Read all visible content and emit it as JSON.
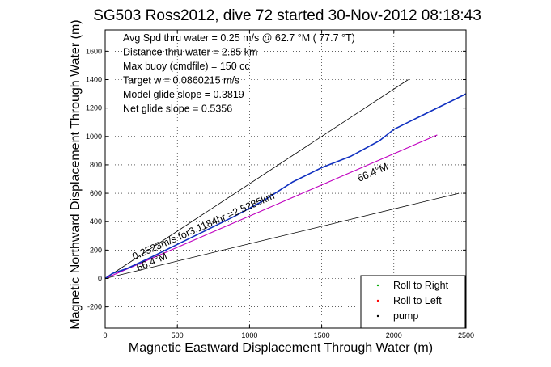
{
  "chart_data": {
    "type": "line",
    "title": "SG503 Ross2012, dive 72 started 30-Nov-2012 08:18:43",
    "xlabel": "Magnetic Eastward Displacement Through Water (m)",
    "ylabel": "Magnetic Northward Displacement Through Water (m)",
    "xlim": [
      0,
      2500
    ],
    "ylim": [
      -350,
      1750
    ],
    "xticks": [
      0,
      500,
      1000,
      1500,
      2000,
      2500
    ],
    "yticks": [
      -200,
      0,
      200,
      400,
      600,
      800,
      1000,
      1200,
      1400,
      1600
    ],
    "grid": true,
    "info_lines": [
      "Avg Spd thru water =  0.25 m/s @  62.7   °M ( 77.7 °T)",
      "Distance thru water =  2.85 km",
      "Max buoy (cmdfile) = 150 cc",
      "Target w = 0.0860215 m/s",
      "Model glide slope = 0.3819",
      "Net glide slope = 0.5356"
    ],
    "annotations": [
      {
        "text": "0.2523m/s for3.1184hr =2.5285km",
        "x": 200,
        "y": 130
      },
      {
        "text": "66.4°M",
        "x": 1760,
        "y": 680
      },
      {
        "text": "66.4°M",
        "x": 230,
        "y": 50
      }
    ],
    "legend": {
      "position": "bottom-right",
      "entries": [
        "Roll to Right",
        "Roll to Left",
        "pump"
      ],
      "colors": [
        "#00aa00",
        "#ff0000",
        "#000000"
      ]
    },
    "series": [
      {
        "style": "black-line",
        "x": [
          0,
          2100
        ],
        "y": [
          0,
          1400
        ]
      },
      {
        "style": "black-line",
        "x": [
          0,
          2300
        ],
        "y": [
          0,
          1010
        ]
      },
      {
        "style": "black-line",
        "x": [
          0,
          2450
        ],
        "y": [
          0,
          600
        ]
      },
      {
        "style": "magenta-line",
        "x": [
          0,
          2300
        ],
        "y": [
          0,
          1010
        ]
      },
      {
        "style": "blue-track",
        "x": [
          0,
          50,
          150,
          300,
          500,
          700,
          900,
          1100,
          1300,
          1500,
          1700,
          1900,
          2000,
          2100,
          2200,
          2300,
          2400,
          2500
        ],
        "y": [
          0,
          35,
          70,
          140,
          240,
          340,
          440,
          550,
          680,
          780,
          860,
          970,
          1050,
          1100,
          1150,
          1200,
          1250,
          1300
        ]
      }
    ]
  }
}
